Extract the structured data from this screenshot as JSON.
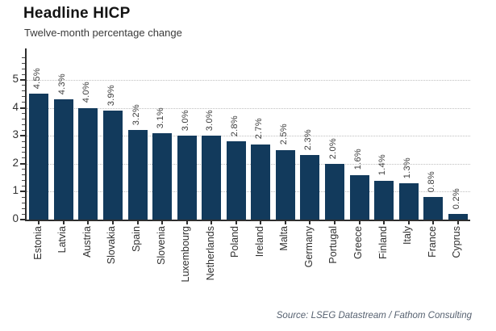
{
  "header": {
    "title": "Headline HICP",
    "subtitle": "Twelve-month percentage change"
  },
  "footer": {
    "source": "Source: LSEG Datastream / Fathom Consulting"
  },
  "chart_data": {
    "type": "bar",
    "title": "Headline HICP",
    "subtitle": "Twelve-month percentage change",
    "categories": [
      "Estonia",
      "Latvia",
      "Austria",
      "Slovakia",
      "Spain",
      "Slovenia",
      "Luxembourg",
      "Netherlands",
      "Poland",
      "Ireland",
      "Malta",
      "Germany",
      "Portugal",
      "Greece",
      "Finland",
      "Italy",
      "France",
      "Cyprus"
    ],
    "values": [
      4.5,
      4.3,
      4.0,
      3.9,
      3.2,
      3.1,
      3.0,
      3.0,
      2.8,
      2.7,
      2.5,
      2.3,
      2.0,
      1.6,
      1.4,
      1.3,
      0.8,
      0.2
    ],
    "value_labels": [
      "4.5%",
      "4.3%",
      "4.0%",
      "3.9%",
      "3.2%",
      "3.1%",
      "3.0%",
      "3.0%",
      "2.8%",
      "2.7%",
      "2.5%",
      "2.3%",
      "2.0%",
      "1.6%",
      "1.4%",
      "1.3%",
      "0.8%",
      "0.2%"
    ],
    "xlabel": "",
    "ylabel": "",
    "y_ticks": [
      0,
      1,
      2,
      3,
      4,
      5
    ],
    "ylim": [
      0,
      6.13
    ],
    "minor_tick_step": 0.2,
    "grid": "horizontal dotted lines at integers 1-5",
    "legend": "none",
    "bar_color": "#123a5c",
    "gridline_color": "#bfbfbf",
    "axis_color": "#2e2e2e",
    "source": "Source: LSEG Datastream / Fathom Consulting"
  }
}
